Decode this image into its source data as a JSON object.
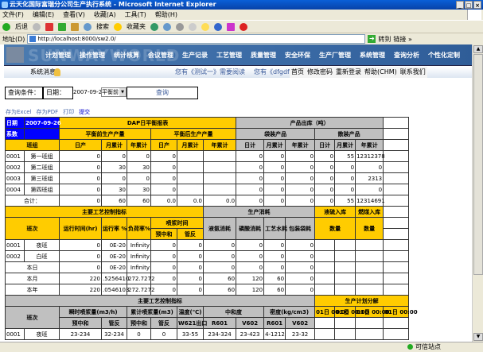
{
  "window": {
    "title": "云天化国际富瑞分公司生产执行系统 - Microsoft Internet Explorer",
    "buttons": [
      "_",
      "□",
      "×"
    ]
  },
  "menu": [
    "文件(F)",
    "编辑(E)",
    "查看(V)",
    "收藏(A)",
    "工具(T)",
    "帮助(H)"
  ],
  "toolbar": {
    "back": "后退",
    "search": "搜索",
    "favorites": "收藏夹"
  },
  "address": {
    "label": "地址(D)",
    "url": "http://localhost:8000/sw2.0/",
    "go": "转到",
    "links": "链接 »"
  },
  "banner": {
    "watermark": "SUNWAYWORLD",
    "nav": [
      "计划管理",
      "操作管理",
      "统计核算",
      "会议管理",
      "生产记录",
      "工艺管理",
      "质量管理",
      "安全环保",
      "生产厂管理",
      "系统管理",
      "查询分析",
      "个性化定制"
    ]
  },
  "subbar": {
    "message": "系统消息",
    "notices": [
      "您有《测试一》需要阅读",
      "您有《dfgdfg》需"
    ],
    "links": [
      "首页",
      "修改密码",
      "重新登录",
      "帮助(CHM)",
      "联系我们"
    ]
  },
  "query": {
    "label": "查询条件：",
    "date_label": "日期：",
    "date_value": "2007-09-26",
    "mode": "平衡前",
    "submit": "查询"
  },
  "actions": [
    "存为Excel",
    "存为PDF",
    "打印",
    "提交"
  ],
  "colors": {
    "blue": "#0000ff",
    "yellow": "#ffcc00",
    "grey": "#c0c0c0"
  },
  "table1": {
    "header": [
      [
        "日期",
        "2007-09-26",
        "DAP日平衡报表",
        "产品出库（吨）",
        ""
      ],
      [
        "系数",
        "",
        "平衡前生产产量",
        "平衡后生产产量",
        "袋装产品",
        "散装产品",
        ""
      ],
      [
        "班组",
        "日产",
        "月累计",
        "年累计",
        "日产",
        "月累计",
        "年累计",
        "日计",
        "月累计",
        "年累计",
        "日计",
        "月累计",
        "年累计",
        ""
      ]
    ],
    "rows": [
      [
        "0001",
        "第一班组",
        "0",
        "0",
        "0",
        "0",
        "",
        "",
        "0",
        "0",
        "0",
        "0",
        "55",
        "12312378",
        ""
      ],
      [
        "0002",
        "第二班组",
        "0",
        "30",
        "30",
        "0",
        "",
        "",
        "0",
        "0",
        "0",
        "0",
        "0",
        "0",
        ""
      ],
      [
        "0003",
        "第三班组",
        "0",
        "0",
        "0",
        "0",
        "",
        "",
        "0",
        "0",
        "0",
        "0",
        "0",
        "2313",
        ""
      ],
      [
        "0004",
        "第四班组",
        "0",
        "30",
        "30",
        "0",
        "",
        "",
        "0",
        "0",
        "0",
        "0",
        "0",
        "0",
        ""
      ]
    ],
    "total": [
      "合计：",
      "0",
      "60",
      "60",
      "0.0",
      "0.0",
      "0.0",
      "0",
      "0",
      "0",
      "0",
      "55",
      "12314691",
      ""
    ]
  },
  "table2": {
    "header": [
      [
        "主要工艺控制指标",
        "生产消耗",
        "液硫入库",
        "燃煤入库",
        ""
      ],
      [
        "班次",
        "运行时间(hr)",
        "运行率 %",
        "负荷率%",
        "喷浆时间",
        "液氨消耗",
        "磷酸消耗",
        "工艺水耗",
        "包装袋耗",
        "数量",
        "数量",
        ""
      ],
      [
        "预中和",
        "管反",
        ""
      ]
    ],
    "rows": [
      [
        "0001",
        "夜班",
        "0",
        "0E-20",
        "Infinity",
        "0",
        "0",
        "0",
        "0",
        "0",
        "0",
        "",
        "",
        "",
        ""
      ],
      [
        "0002",
        "白班",
        "0",
        "0E-20",
        "Infinity",
        "0",
        "0",
        "0",
        "0",
        "0",
        "0",
        "",
        "",
        "",
        ""
      ]
    ],
    "summary": [
      [
        "本日",
        "0",
        "0E-20",
        "Infinity",
        "0",
        "0",
        "0",
        "0",
        "0",
        "0",
        "",
        "",
        "",
        ""
      ],
      [
        "本月",
        "220",
        ".5256410",
        "272.7272",
        "0",
        "0",
        "60",
        "120",
        "60",
        "0",
        "",
        "",
        "",
        ""
      ],
      [
        "本年",
        "220",
        ".0546103",
        "272.7272",
        "0",
        "0",
        "60",
        "120",
        "60",
        "0",
        "",
        "",
        "",
        ""
      ]
    ]
  },
  "table3": {
    "header": [
      [
        "主要工艺控制指标",
        "生产计划分解"
      ],
      [
        "班次",
        "瞬时喷浆量(m3/h)",
        "累计喷浆量(m3)",
        "温度(℃)",
        "中和度",
        "密度(kg/cm3)",
        "01日 00:00",
        "01日 00:00",
        "01日 00:00",
        "01日 00:00"
      ],
      [
        "预中和",
        "管反",
        "预中和",
        "管反",
        "W621出口",
        "R601",
        "V602",
        "R601",
        "V602",
        "",
        "",
        "",
        ""
      ]
    ],
    "rows": [
      [
        "0001",
        "夜班",
        "23-234",
        "32-234",
        "0",
        "0",
        "33-55",
        "234-324",
        "23-423",
        "4-1212",
        "23-32",
        "",
        "",
        "",
        ""
      ]
    ]
  },
  "status": {
    "zone": "可信站点"
  }
}
